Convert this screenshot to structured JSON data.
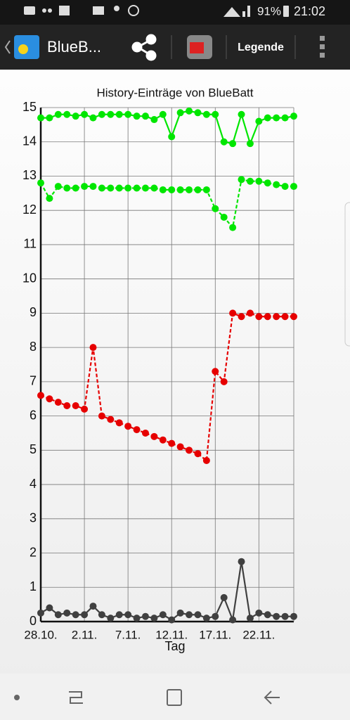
{
  "status_bar": {
    "battery": "91%",
    "time": "21:02"
  },
  "app_bar": {
    "title": "BlueB...",
    "legend_button": "Legende"
  },
  "chart_data": {
    "type": "line",
    "title": "History-Einträge von BlueBatt",
    "x_label": "Tag",
    "categories": [
      "28.10.",
      null,
      null,
      null,
      null,
      "2.11.",
      null,
      null,
      null,
      null,
      "7.11.",
      null,
      null,
      null,
      null,
      "12.11.",
      null,
      null,
      null,
      null,
      "17.11.",
      null,
      null,
      null,
      null,
      "22.11.",
      null,
      null,
      null,
      null
    ],
    "ylim": [
      0,
      15
    ],
    "yticks": [
      0,
      1,
      2,
      3,
      4,
      5,
      6,
      7,
      8,
      9,
      10,
      11,
      12,
      13,
      14,
      15
    ],
    "grid": true,
    "series": [
      {
        "color": "#00e600",
        "dashed": false,
        "values": [
          14.7,
          14.7,
          14.8,
          14.8,
          14.75,
          14.8,
          14.7,
          14.8,
          14.8,
          14.8,
          14.8,
          14.75,
          14.75,
          14.65,
          14.8,
          14.15,
          14.85,
          14.9,
          14.85,
          14.8,
          14.8,
          14.0,
          13.95,
          14.8,
          13.95,
          14.6,
          14.7,
          14.7,
          14.7,
          14.75
        ]
      },
      {
        "color": "#00e600",
        "dashed": true,
        "values": [
          12.8,
          12.35,
          12.7,
          12.65,
          12.65,
          12.7,
          12.7,
          12.65,
          12.65,
          12.65,
          12.65,
          12.65,
          12.65,
          12.65,
          12.6,
          12.6,
          12.6,
          12.6,
          12.6,
          12.6,
          12.05,
          11.8,
          11.5,
          12.9,
          12.85,
          12.85,
          12.8,
          12.75,
          12.7,
          12.7
        ]
      },
      {
        "color": "#e60000",
        "dashed": true,
        "values": [
          6.6,
          6.5,
          6.4,
          6.3,
          6.3,
          6.2,
          8.0,
          6.0,
          5.9,
          5.8,
          5.7,
          5.6,
          5.5,
          5.4,
          5.3,
          5.2,
          5.1,
          5.0,
          4.9,
          4.7,
          7.3,
          7.0,
          9.0,
          8.9,
          9.0,
          8.9,
          8.9,
          8.9,
          8.9,
          8.9
        ]
      },
      {
        "color": "#404040",
        "dashed": false,
        "values": [
          0.25,
          0.4,
          0.2,
          0.25,
          0.2,
          0.2,
          0.45,
          0.2,
          0.1,
          0.2,
          0.2,
          0.1,
          0.15,
          0.1,
          0.2,
          0.05,
          0.25,
          0.2,
          0.2,
          0.1,
          0.15,
          0.7,
          0.05,
          1.75,
          0.1,
          0.25,
          0.2,
          0.15,
          0.15,
          0.15
        ]
      }
    ]
  }
}
